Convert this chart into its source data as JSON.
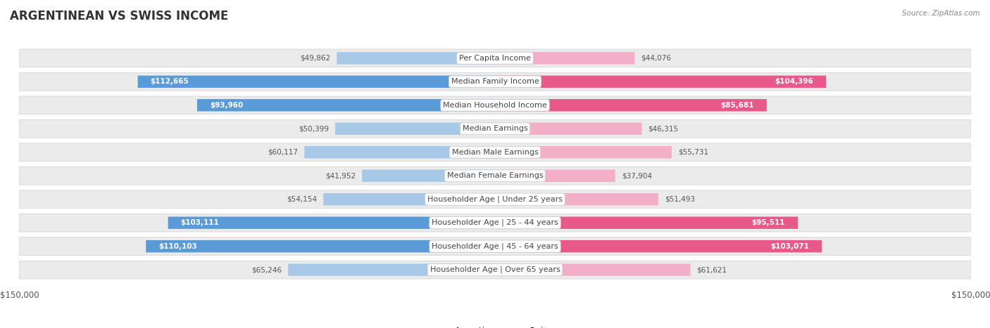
{
  "title": "ARGENTINEAN VS SWISS INCOME",
  "source": "Source: ZipAtlas.com",
  "max_value": 150000,
  "categories": [
    "Per Capita Income",
    "Median Family Income",
    "Median Household Income",
    "Median Earnings",
    "Median Male Earnings",
    "Median Female Earnings",
    "Householder Age | Under 25 years",
    "Householder Age | 25 - 44 years",
    "Householder Age | 45 - 64 years",
    "Householder Age | Over 65 years"
  ],
  "argentinean": [
    49862,
    112665,
    93960,
    50399,
    60117,
    41952,
    54154,
    103111,
    110103,
    65246
  ],
  "swiss": [
    44076,
    104396,
    85681,
    46315,
    55731,
    37904,
    51493,
    95511,
    103071,
    61621
  ],
  "arg_color_light": "#a8c8e8",
  "arg_color_dark": "#5b9bd5",
  "swiss_color_light": "#f4afc8",
  "swiss_color_dark": "#e8598a",
  "arg_label": "Argentinean",
  "swiss_label": "Swiss",
  "inside_threshold": 0.45,
  "title_fontsize": 12,
  "label_fontsize": 8,
  "value_fontsize": 7.5,
  "axis_label_fontsize": 8.5
}
